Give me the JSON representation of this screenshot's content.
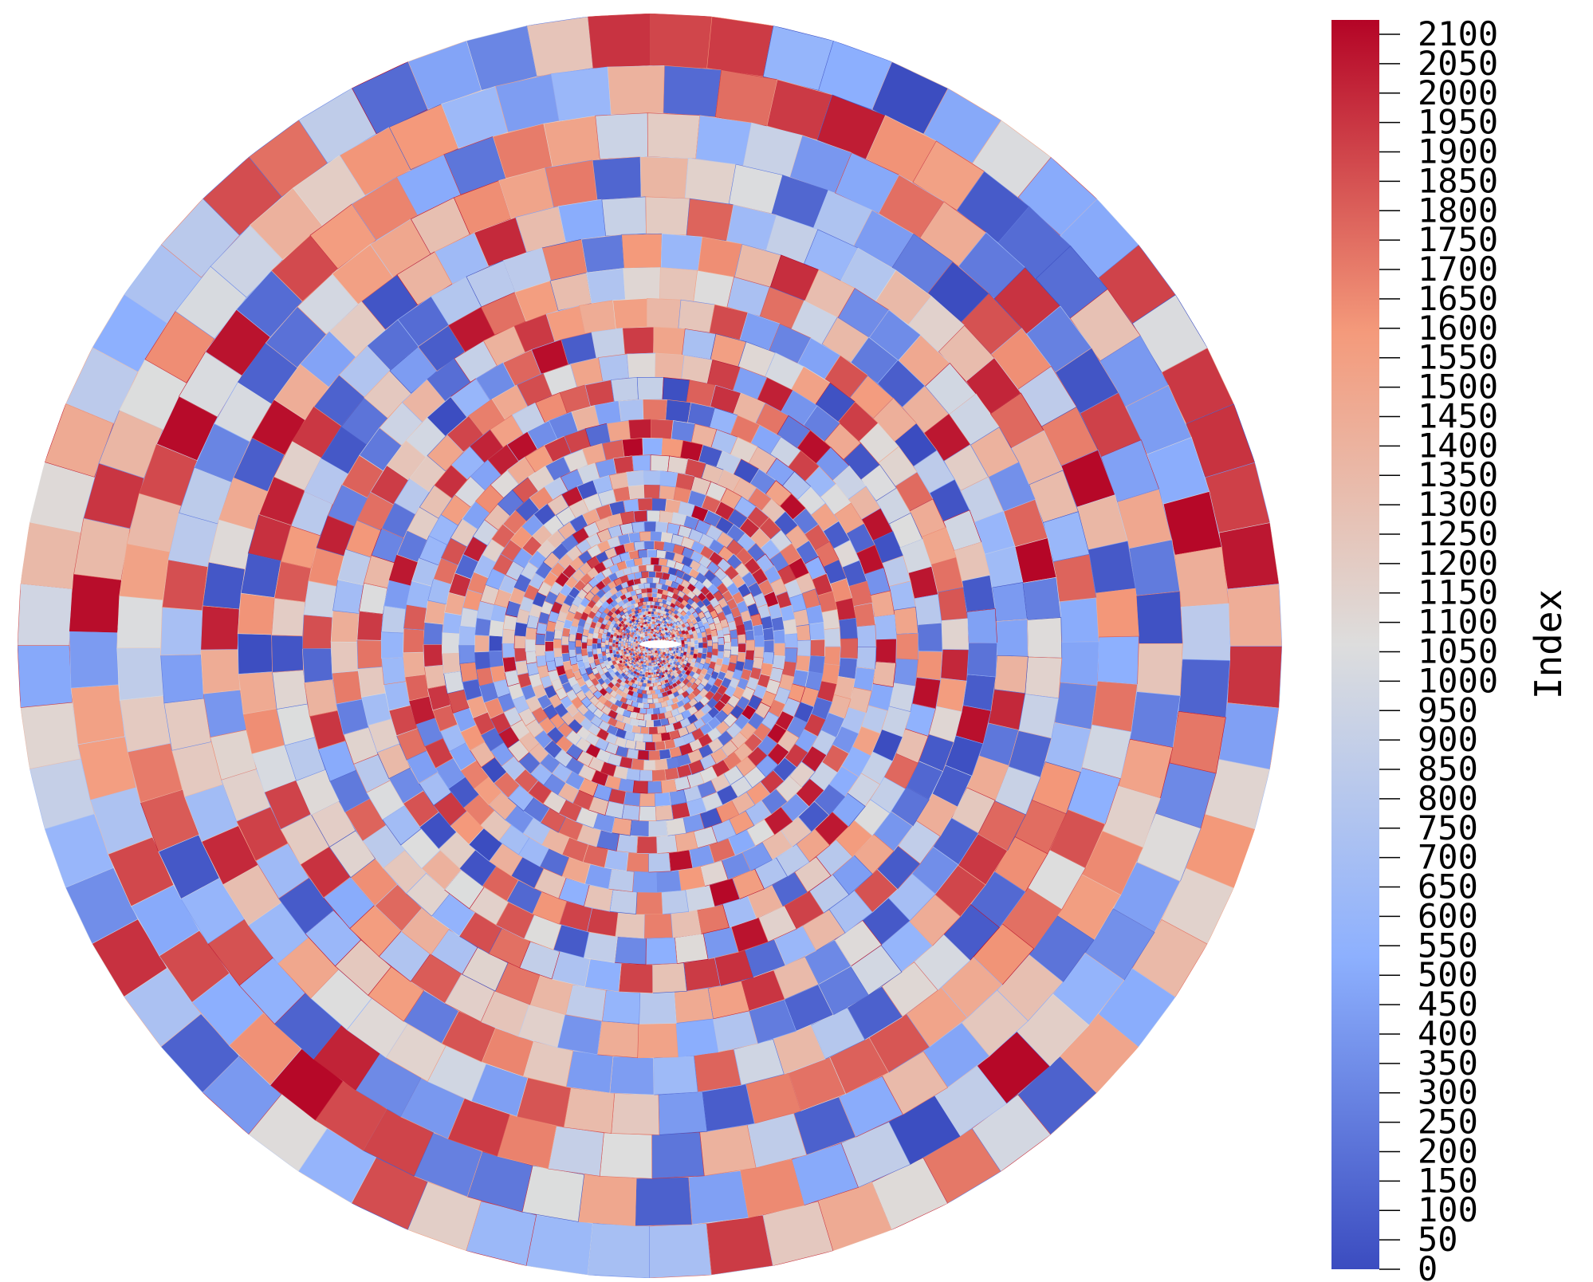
{
  "scalar_bar": {
    "title": "Index",
    "range": [
      0,
      2100
    ],
    "tick_labels": [
      "0",
      "50",
      "100",
      "150",
      "200",
      "250",
      "300",
      "350",
      "400",
      "450",
      "500",
      "550",
      "600",
      "650",
      "700",
      "750",
      "800",
      "850",
      "900",
      "950",
      "1000",
      "1050",
      "1100",
      "1150",
      "1200",
      "1250",
      "1300",
      "1350",
      "1400",
      "1450",
      "1500",
      "1550",
      "1600",
      "1650",
      "1700",
      "1750",
      "1800",
      "1850",
      "1900",
      "1950",
      "2000",
      "2050",
      "2100"
    ],
    "colormap": "Cool to Warm",
    "colors": {
      "low": "#3b4cc0",
      "mid": "#dddddd",
      "high": "#b40426"
    }
  },
  "mesh": {
    "shape": "disk",
    "center_feature": "airfoil",
    "cell_coloring": "Index"
  }
}
